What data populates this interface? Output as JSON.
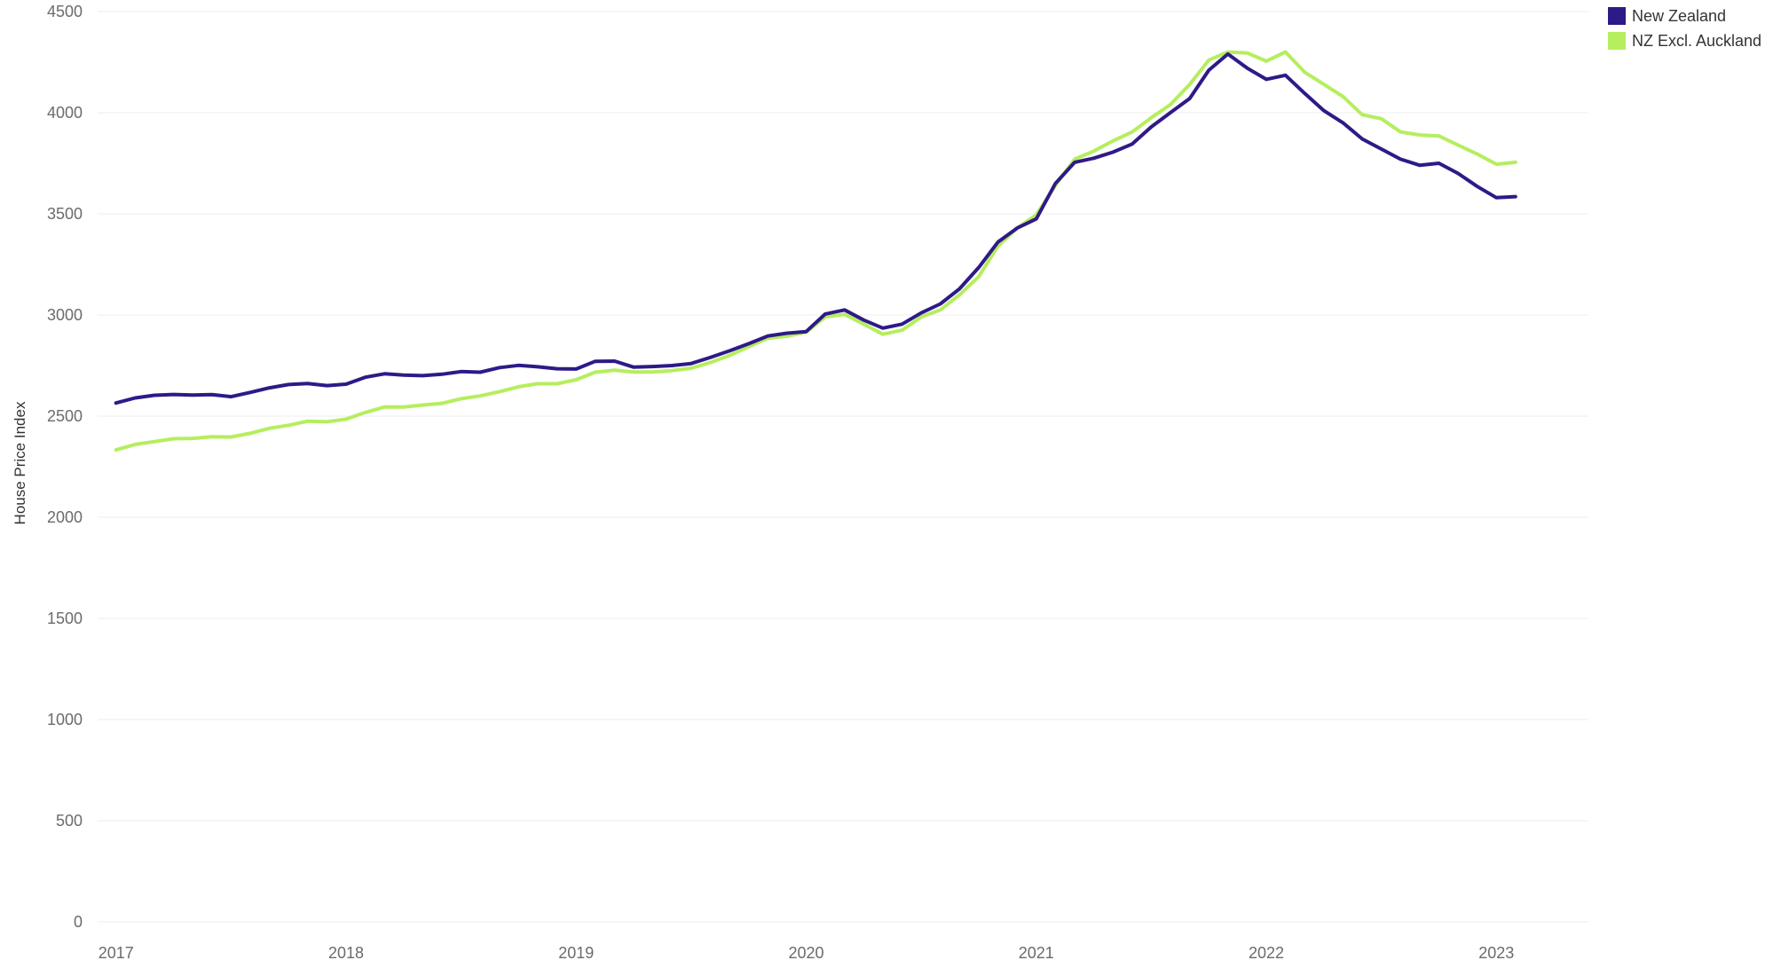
{
  "chart_data": {
    "type": "line",
    "title": "",
    "xlabel": "",
    "ylabel": "House Price Index",
    "ylim": [
      0,
      4500
    ],
    "yticks": [
      0,
      500,
      1000,
      1500,
      2000,
      2500,
      3000,
      3500,
      4000,
      4500
    ],
    "ytick_labels": [
      "0",
      "500",
      "1000",
      "1500",
      "2000",
      "2500",
      "3000",
      "3500",
      "4000",
      "4500"
    ],
    "xlim": [
      2016.92,
      2023.4
    ],
    "xticks": [
      2017,
      2018,
      2019,
      2020,
      2021,
      2022,
      2023
    ],
    "xtick_labels": [
      "2017",
      "2018",
      "2019",
      "2020",
      "2021",
      "2022",
      "2023"
    ],
    "grid": true,
    "legend_position": "top-right",
    "series": [
      {
        "name": "New Zealand",
        "color": "#2e1a87",
        "x": [
          2017.0,
          2017.083,
          2017.167,
          2017.25,
          2017.333,
          2017.417,
          2017.5,
          2017.583,
          2017.667,
          2017.75,
          2017.833,
          2017.917,
          2018.0,
          2018.083,
          2018.167,
          2018.25,
          2018.333,
          2018.417,
          2018.5,
          2018.583,
          2018.667,
          2018.75,
          2018.833,
          2018.917,
          2019.0,
          2019.083,
          2019.167,
          2019.25,
          2019.333,
          2019.417,
          2019.5,
          2019.583,
          2019.667,
          2019.75,
          2019.833,
          2019.917,
          2020.0,
          2020.083,
          2020.167,
          2020.25,
          2020.333,
          2020.417,
          2020.5,
          2020.583,
          2020.667,
          2020.75,
          2020.833,
          2020.917,
          2021.0,
          2021.083,
          2021.167,
          2021.25,
          2021.333,
          2021.417,
          2021.5,
          2021.583,
          2021.667,
          2021.75,
          2021.833,
          2021.917,
          2022.0,
          2022.083,
          2022.167,
          2022.25,
          2022.333,
          2022.417,
          2022.5,
          2022.583,
          2022.667,
          2022.75,
          2022.833,
          2022.917,
          2023.0,
          2023.083
        ],
        "values": [
          2565,
          2590,
          2603,
          2607,
          2604,
          2606,
          2596,
          2617,
          2640,
          2656,
          2661,
          2651,
          2658,
          2692,
          2709,
          2703,
          2700,
          2707,
          2720,
          2717,
          2740,
          2751,
          2744,
          2734,
          2733,
          2771,
          2772,
          2742,
          2745,
          2750,
          2760,
          2790,
          2823,
          2858,
          2896,
          2910,
          2918,
          3005,
          3025,
          2975,
          2935,
          2955,
          3010,
          3055,
          3130,
          3235,
          3360,
          3430,
          3475,
          3650,
          3755,
          3775,
          3805,
          3845,
          3930,
          4000,
          4070,
          4210,
          4290,
          4220,
          4165,
          4185,
          4095,
          4010,
          3950,
          3870,
          3820,
          3770,
          3740,
          3750,
          3700,
          3635,
          3580,
          3585
        ]
      },
      {
        "name": "NZ Excl. Auckland",
        "color": "#b5ee5e",
        "x": [
          2017.0,
          2017.083,
          2017.167,
          2017.25,
          2017.333,
          2017.417,
          2017.5,
          2017.583,
          2017.667,
          2017.75,
          2017.833,
          2017.917,
          2018.0,
          2018.083,
          2018.167,
          2018.25,
          2018.333,
          2018.417,
          2018.5,
          2018.583,
          2018.667,
          2018.75,
          2018.833,
          2018.917,
          2019.0,
          2019.083,
          2019.167,
          2019.25,
          2019.333,
          2019.417,
          2019.5,
          2019.583,
          2019.667,
          2019.75,
          2019.833,
          2019.917,
          2020.0,
          2020.083,
          2020.167,
          2020.25,
          2020.333,
          2020.417,
          2020.5,
          2020.583,
          2020.667,
          2020.75,
          2020.833,
          2020.917,
          2021.0,
          2021.083,
          2021.167,
          2021.25,
          2021.333,
          2021.417,
          2021.5,
          2021.583,
          2021.667,
          2021.75,
          2021.833,
          2021.917,
          2022.0,
          2022.083,
          2022.167,
          2022.25,
          2022.333,
          2022.417,
          2022.5,
          2022.583,
          2022.667,
          2022.75,
          2022.833,
          2022.917,
          2023.0,
          2023.083
        ],
        "values": [
          2333,
          2360,
          2374,
          2388,
          2390,
          2398,
          2397,
          2415,
          2440,
          2455,
          2475,
          2472,
          2485,
          2518,
          2545,
          2545,
          2555,
          2563,
          2586,
          2600,
          2621,
          2645,
          2660,
          2660,
          2680,
          2717,
          2727,
          2718,
          2718,
          2725,
          2737,
          2765,
          2800,
          2843,
          2885,
          2895,
          2915,
          2990,
          3003,
          2955,
          2905,
          2925,
          2990,
          3025,
          3100,
          3190,
          3340,
          3430,
          3495,
          3640,
          3770,
          3810,
          3860,
          3905,
          3975,
          4040,
          4140,
          4260,
          4300,
          4295,
          4255,
          4300,
          4200,
          4140,
          4080,
          3990,
          3970,
          3905,
          3890,
          3885,
          3840,
          3795,
          3745,
          3755
        ]
      }
    ]
  }
}
